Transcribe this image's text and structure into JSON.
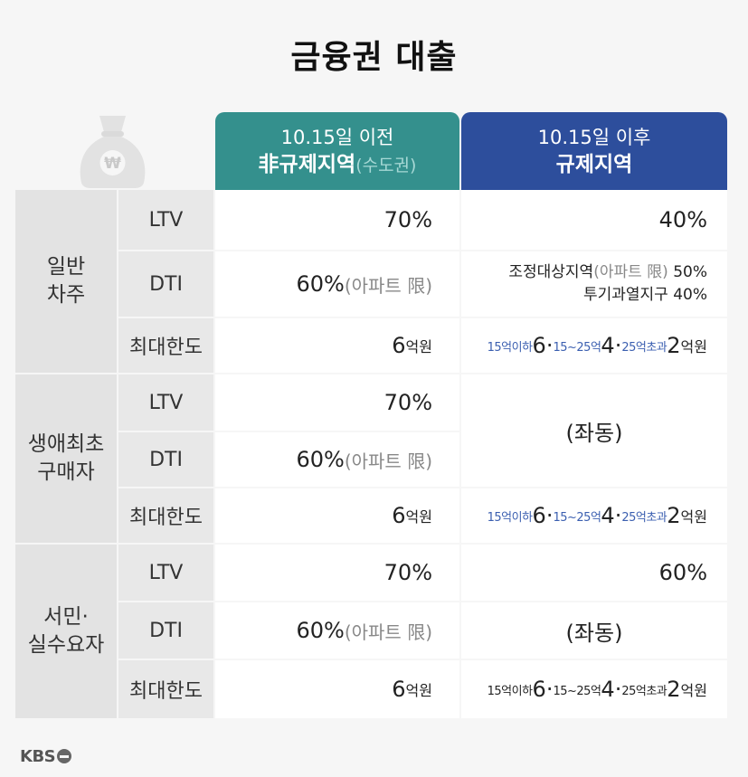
{
  "title": "금융권 대출",
  "colors": {
    "before_header": "#34908d",
    "after_header": "#2d4e9c",
    "highlight_blue": "#3b5fb0"
  },
  "bag_icon": "money-bag-won-icon",
  "bag_symbol": "₩",
  "header_before": {
    "line1": "10.15일 이전",
    "line2": "非규제지역",
    "line2_sub": "(수도권)"
  },
  "header_after": {
    "line1": "10.15일 이후",
    "line2": "규제지역"
  },
  "groups": [
    {
      "name_line1": "일반",
      "name_line2": "차주",
      "rows": [
        {
          "label": "LTV",
          "before": "70%",
          "after": "40%"
        },
        {
          "label": "DTI",
          "before": "60%",
          "before_sub": "(아파트 限)",
          "after_line1": "조정대상지역",
          "after_line1_sub": "(아파트 限)",
          "after_line1_val": " 50%",
          "after_line2": "투기과열지구 40%"
        },
        {
          "label": "최대한도",
          "before": "6",
          "before_unit": "억원",
          "after_t1": "15억이하",
          "after_v1": "6",
          "after_t2": "15~25억",
          "after_v2": "4",
          "after_t3": "25억초과",
          "after_v3": "2",
          "after_unit": "억원"
        }
      ]
    },
    {
      "name_line1": "생애최초",
      "name_line2": "구매자",
      "rows": [
        {
          "label": "LTV",
          "before": "70%"
        },
        {
          "label": "DTI",
          "before": "60%",
          "before_sub": "(아파트 限)"
        },
        {
          "label": "최대한도",
          "before": "6",
          "before_unit": "억원",
          "after_t1": "15억이하",
          "after_v1": "6",
          "after_t2": "15~25억",
          "after_v2": "4",
          "after_t3": "25억초과",
          "after_v3": "2",
          "after_unit": "억원"
        }
      ],
      "merged_after": "(좌동)"
    },
    {
      "name_line1": "서민·",
      "name_line2": "실수요자",
      "rows": [
        {
          "label": "LTV",
          "before": "70%",
          "after": "60%"
        },
        {
          "label": "DTI",
          "before": "60%",
          "before_sub": "(아파트 限)",
          "after": "(좌동)"
        },
        {
          "label": "최대한도",
          "before": "6",
          "before_unit": "억원",
          "after_t1": "15억이하",
          "after_v1": "6",
          "after_t2": "15~25억",
          "after_v2": "4",
          "after_t3": "25억초과",
          "after_v3": "2",
          "after_unit": "억원"
        }
      ]
    }
  ],
  "source_logo": "KBS"
}
